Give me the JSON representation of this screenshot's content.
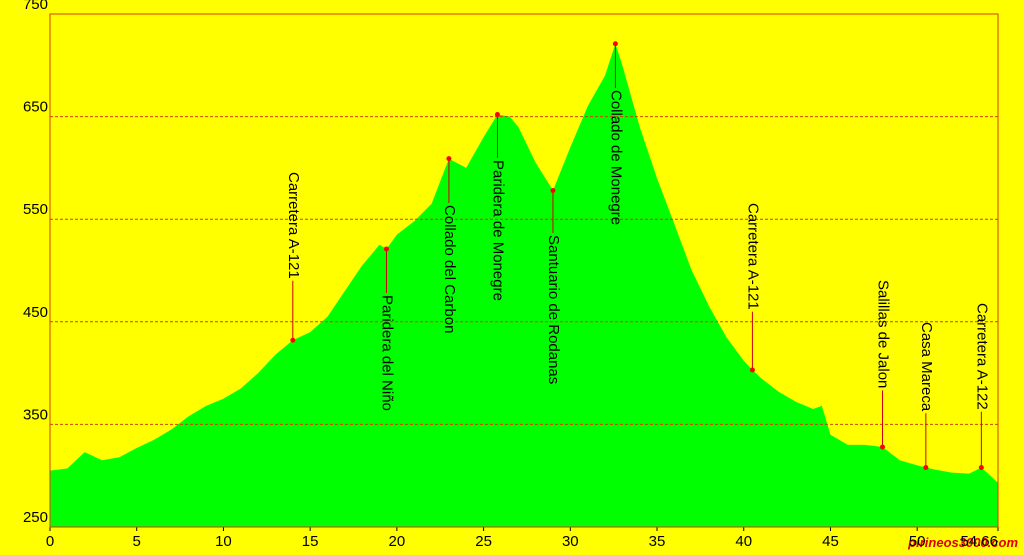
{
  "chart_data": {
    "type": "area",
    "x": [
      0,
      1,
      2,
      3,
      4,
      5,
      6,
      7,
      8,
      9,
      10,
      11,
      12,
      13,
      14,
      15,
      16,
      17,
      18,
      18.5,
      19,
      19.4,
      20,
      21,
      22,
      23,
      24,
      25,
      25.8,
      26.5,
      27,
      28,
      29,
      30,
      31,
      32,
      32.6,
      33,
      34,
      35,
      36,
      37,
      38,
      39,
      40,
      40.5,
      41,
      42,
      43,
      44,
      44.5,
      45,
      46,
      47,
      48,
      49,
      50,
      51,
      52,
      53,
      53.7,
      54.66
    ],
    "values": [
      305,
      307,
      323,
      315,
      318,
      327,
      335,
      345,
      358,
      368,
      375,
      385,
      400,
      418,
      432,
      440,
      455,
      480,
      505,
      515,
      525,
      521,
      535,
      548,
      565,
      609,
      600,
      630,
      652,
      650,
      640,
      605,
      578,
      620,
      660,
      690,
      721,
      700,
      640,
      590,
      545,
      500,
      465,
      435,
      412,
      403,
      395,
      382,
      372,
      365,
      368,
      340,
      330,
      330,
      328,
      315,
      310,
      306,
      303,
      302,
      308,
      293
    ],
    "color": "#00ff00",
    "xlim": [
      0,
      54.66
    ],
    "ylim": [
      250,
      750
    ],
    "xticks": [
      0,
      5,
      10,
      15,
      20,
      25,
      30,
      35,
      40,
      45,
      50,
      54.66
    ],
    "yticks": [
      250,
      350,
      450,
      550,
      650,
      750
    ],
    "grid": true,
    "annotations": [
      {
        "text": "Carretera A-121",
        "x": 14,
        "y": 432
      },
      {
        "text": "Paridera del Niño",
        "x": 19.4,
        "y": 521
      },
      {
        "text": "Collado del Carbon",
        "x": 23,
        "y": 609
      },
      {
        "text": "Paridera de Monegre",
        "x": 25.8,
        "y": 652
      },
      {
        "text": "Santuario de Rodanas",
        "x": 29,
        "y": 578
      },
      {
        "text": "Collado de Monegre",
        "x": 32.6,
        "y": 721
      },
      {
        "text": "Carretera A-121",
        "x": 40.5,
        "y": 403
      },
      {
        "text": "Salillas de Jalon",
        "x": 48,
        "y": 328
      },
      {
        "text": "Casa Mareca",
        "x": 50.5,
        "y": 308
      },
      {
        "text": "Carretera A-122",
        "x": 53.7,
        "y": 308
      }
    ],
    "watermark": "pirineos3000.com"
  }
}
